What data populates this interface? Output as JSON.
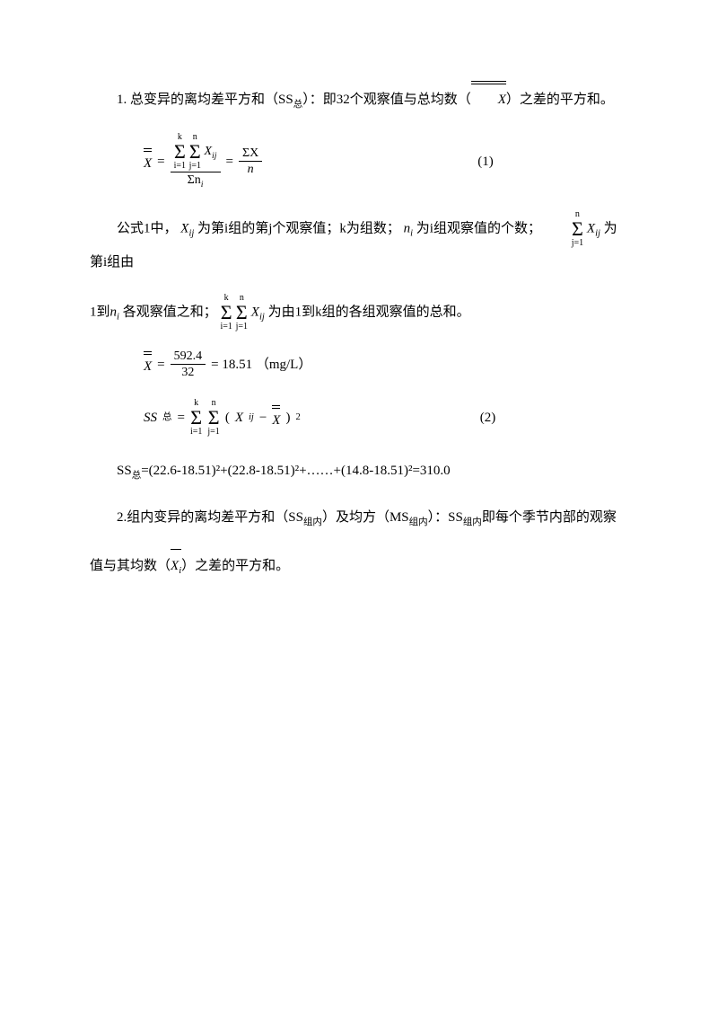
{
  "page": {
    "background_color": "#ffffff",
    "text_color": "#000000",
    "font_family": "SimSun",
    "base_fontsize_pt": 11
  },
  "p1": {
    "lead": "1. 总变异的离均差平方和（SS",
    "sub1": "总",
    "mid1": "）：即32个观察值与总均数（",
    "xbar": "X",
    "tail": "）之差的平方和。"
  },
  "eq1": {
    "lhs_sym": "X",
    "eq": " = ",
    "sum_top1": "k",
    "sum_bot1": "i=1",
    "sum_top2": "n",
    "sum_bot2": "j=1",
    "xij": "X",
    "xij_sub": "ij",
    "den1a": "Σn",
    "den1a_sub": "i",
    "eq2": " = ",
    "num2": "ΣX",
    "den2": "n",
    "label": "(1)"
  },
  "p2": {
    "t1": "公式1中，",
    "xij": "X",
    "xij_sub": "ij",
    "t2": " 为第i组的第j个观察值；k为组数；",
    "ni": "n",
    "ni_sub": "i",
    "t3": " 为i组观察值的个数；",
    "sum_top": "n",
    "sum_bot": "j=1",
    "t4": " 为第i组由",
    "line2a": "1到",
    "ni2": "n",
    "ni2_sub": "i",
    "t5": "各观察值之和；",
    "sum2_top1": "k",
    "sum2_bot1": "i=1",
    "sum2_top2": "n",
    "sum2_bot2": "j=1",
    "t6": " 为由1到k组的各组观察值的总和。"
  },
  "eq2calc": {
    "lhs": "X",
    "eq": " = ",
    "num": "592.4",
    "den": "32",
    "eq2": " = 18.51   （mg/L）"
  },
  "eq3": {
    "lhs": "SS",
    "lhs_sub": "总",
    "eq": "  = ",
    "sum_top1": "k",
    "sum_bot1": "i=1",
    "sum_top2": "n",
    "sum_bot2": "j=1",
    "open": "(",
    "xij": "X",
    "xij_sub": "ij",
    "minus": " − ",
    "xbar": "X",
    "close": ")",
    "sq": "2",
    "label": "(2)"
  },
  "p3": {
    "text": "SS",
    "sub": "总",
    "rest": "=(22.6-18.51)²+(22.8-18.51)²+……+(14.8-18.51)²=310.0"
  },
  "p4": {
    "t1": "2.组内变异的离均差平方和（SS",
    "sub1": "组内",
    "t2": "）及均方（MS",
    "sub2": "组内",
    "t3": "）：SS",
    "sub3": "组内",
    "t4": "即每个季节内部的观察",
    "line2a": "值与其均数（",
    "xi": "X",
    "xi_sub": "i",
    "t5": "）之差的平方和。"
  }
}
